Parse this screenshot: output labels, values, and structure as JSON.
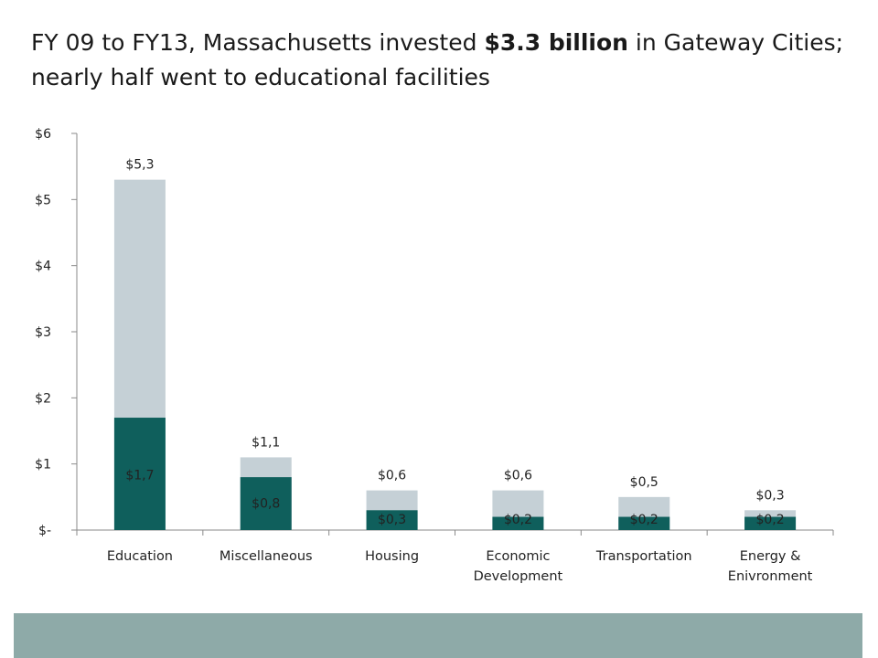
{
  "title": {
    "part1": "FY 09 to FY13, Massachusetts invested ",
    "bold": "$3.3 billion",
    "part2": " in Gateway Cities; nearly half went to educational facilities"
  },
  "chart_data": {
    "type": "bar",
    "stacked": false,
    "overlapped": true,
    "categories": [
      [
        "Education"
      ],
      [
        "Miscellaneous"
      ],
      [
        "Housing"
      ],
      [
        "Economic",
        "Development"
      ],
      [
        "Transportation"
      ],
      [
        "Energy &",
        "Enivronment"
      ]
    ],
    "series": [
      {
        "color": "#c5d0d6",
        "values": [
          5.3,
          1.1,
          0.6,
          0.6,
          0.5,
          0.3
        ],
        "labels": [
          "$5,3",
          "$1,1",
          "$0,6",
          "$0,6",
          "$0,5",
          "$0,3"
        ]
      },
      {
        "color": "#0f5f5c",
        "values": [
          1.7,
          0.8,
          0.3,
          0.2,
          0.2,
          0.2
        ],
        "labels": [
          "$1,7",
          "$0,8",
          "$0,3",
          "$0,2",
          "$0,2",
          "$0,2"
        ]
      }
    ],
    "ylim": [
      0,
      6
    ],
    "yticks": [
      0,
      1,
      2,
      3,
      4,
      5,
      6
    ],
    "ytick_labels": [
      "$-",
      "$1",
      "$2",
      "$3",
      "$4",
      "$5",
      "$6"
    ],
    "grid": false,
    "legend": "none"
  }
}
